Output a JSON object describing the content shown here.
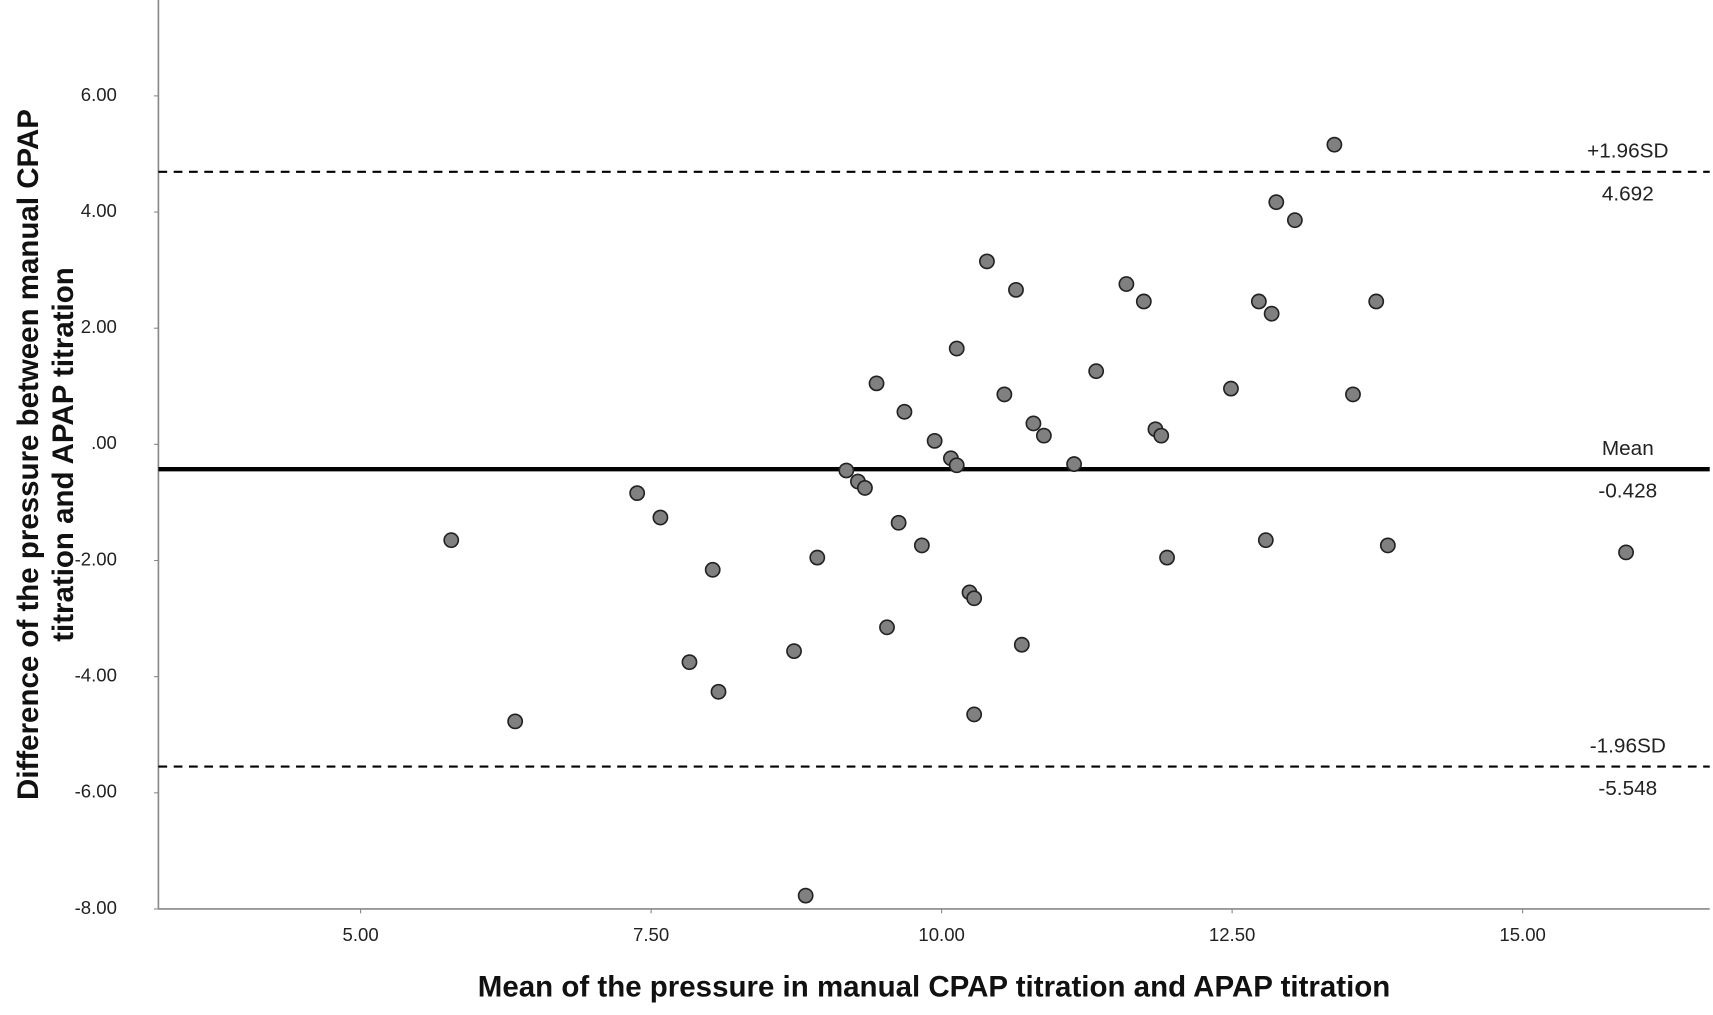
{
  "chart_data": {
    "type": "scatter",
    "xlabel": "Mean of the pressure in manual CPAP titration and APAP titration",
    "ylabel": [
      "Difference of the pressure between manual CPAP",
      "titration and APAP titration"
    ],
    "xlim": [
      3.26,
      16.61
    ],
    "ylim": [
      -8,
      7.65
    ],
    "xticks": [
      {
        "value": 5,
        "label": "5.00"
      },
      {
        "value": 7.5,
        "label": "7.50"
      },
      {
        "value": 10,
        "label": "10.00"
      },
      {
        "value": 12.5,
        "label": "12.50"
      },
      {
        "value": 15,
        "label": "15.00"
      }
    ],
    "yticks": [
      {
        "value": -8,
        "label": "-8.00"
      },
      {
        "value": -6,
        "label": "-6.00"
      },
      {
        "value": -4,
        "label": "-4.00"
      },
      {
        "value": -2,
        "label": "-2.00"
      },
      {
        "value": 0,
        "label": ".00"
      },
      {
        "value": 2,
        "label": "2.00"
      },
      {
        "value": 4,
        "label": "4.00"
      },
      {
        "value": 6,
        "label": "6.00"
      }
    ],
    "grid": false,
    "color": "#808080",
    "x": [
      5.78,
      6.33,
      7.38,
      7.58,
      7.83,
      8.03,
      8.08,
      8.73,
      8.83,
      8.93,
      9.18,
      9.28,
      9.34,
      9.44,
      9.53,
      9.63,
      9.68,
      9.83,
      9.94,
      10.08,
      10.13,
      10.13,
      10.24,
      10.28,
      10.28,
      10.39,
      10.54,
      10.64,
      10.69,
      10.79,
      10.88,
      11.14,
      11.33,
      11.59,
      11.74,
      11.84,
      11.89,
      11.94,
      12.49,
      12.73,
      12.79,
      12.84,
      12.88,
      13.04,
      13.38,
      13.54,
      13.74,
      13.84,
      15.89
    ],
    "values": [
      -1.65,
      -4.77,
      -0.84,
      -1.26,
      -3.75,
      -2.16,
      -4.26,
      -3.56,
      -7.77,
      -1.95,
      -0.45,
      -0.64,
      -0.75,
      1.05,
      -3.15,
      -1.35,
      0.56,
      -1.74,
      0.06,
      -0.24,
      1.65,
      -0.36,
      -2.55,
      -2.65,
      -4.65,
      3.15,
      0.86,
      2.66,
      -3.45,
      0.36,
      0.15,
      -0.34,
      1.26,
      2.76,
      2.46,
      0.26,
      0.15,
      -1.95,
      0.96,
      2.46,
      -1.65,
      2.25,
      4.17,
      3.86,
      5.16,
      0.86,
      2.46,
      -1.74,
      -1.86
    ],
    "lines": [
      {
        "name": "+1.96SD",
        "value": 4.692,
        "style": "dashed"
      },
      {
        "name": "Mean",
        "value": -0.428,
        "style": "solid"
      },
      {
        "name": "-1.96SD",
        "value": -5.548,
        "style": "dashed"
      }
    ]
  }
}
